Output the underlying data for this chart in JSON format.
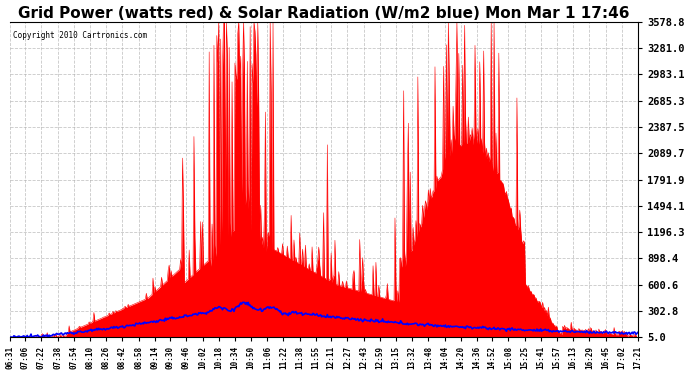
{
  "title": "Grid Power (watts red) & Solar Radiation (W/m2 blue) Mon Mar 1 17:46",
  "copyright": "Copyright 2010 Cartronics.com",
  "background_color": "#ffffff",
  "plot_bg_color": "#ffffff",
  "grid_color": "#b0b0b0",
  "red_color": "#ff0000",
  "blue_color": "#0000ff",
  "title_fontsize": 11,
  "ytick_labels": [
    5.0,
    302.8,
    600.6,
    898.4,
    1196.3,
    1494.1,
    1791.9,
    2089.7,
    2387.5,
    2685.3,
    2983.1,
    3281.0,
    3578.8
  ],
  "xtick_labels": [
    "06:31",
    "07:06",
    "07:22",
    "07:38",
    "07:54",
    "08:10",
    "08:26",
    "08:42",
    "08:58",
    "09:14",
    "09:30",
    "09:46",
    "10:02",
    "10:18",
    "10:34",
    "10:50",
    "11:06",
    "11:22",
    "11:38",
    "11:55",
    "12:11",
    "12:27",
    "12:43",
    "12:59",
    "13:15",
    "13:32",
    "13:48",
    "14:04",
    "14:20",
    "14:36",
    "14:52",
    "15:08",
    "15:25",
    "15:41",
    "15:57",
    "16:13",
    "16:29",
    "16:45",
    "17:02",
    "17:21"
  ],
  "ymin": 5.0,
  "ymax": 3578.8,
  "num_points": 660
}
